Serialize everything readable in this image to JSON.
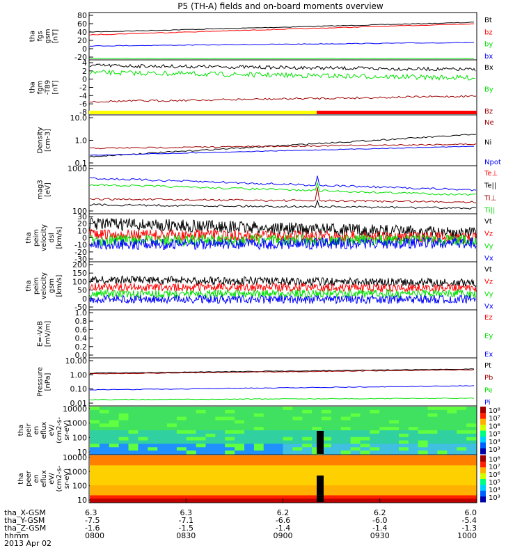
{
  "title": "P5 (TH-A) fields and on-board moments overview",
  "colors": {
    "black": "#000000",
    "red": "#ff0000",
    "green": "#00e000",
    "blue": "#0000ff",
    "darkred": "#a00000",
    "yellow": "#ffff00"
  },
  "panels": [
    {
      "id": "fgs",
      "ylabel": [
        "tha",
        "fgs",
        "gsm",
        "[nT]"
      ],
      "ticks": [
        "80",
        "60",
        "40",
        "20",
        "0",
        "-20"
      ],
      "legend": [
        [
          "Bt",
          "black"
        ],
        [
          "bz",
          "red"
        ],
        [
          "by",
          "green"
        ],
        [
          "bx",
          "blue"
        ]
      ]
    },
    {
      "id": "fgm",
      "ylabel": [
        "tha",
        "fgm",
        "-T89",
        "[nT]"
      ],
      "ticks": [
        "4",
        "2",
        "0",
        "-2",
        "-4",
        "-6",
        "-8"
      ],
      "legend": [
        [
          "Bx",
          "black"
        ],
        [
          "By",
          "green"
        ],
        [
          "Bz",
          "darkred"
        ]
      ]
    },
    {
      "id": "density",
      "ylabel": [
        "Density",
        "[cm-3]"
      ],
      "ticks": [
        "10.0",
        "1.0",
        "0.1"
      ],
      "legend": [
        [
          "Ne",
          "darkred"
        ],
        [
          "Ni",
          "black"
        ],
        [
          "Npot",
          "blue"
        ]
      ]
    },
    {
      "id": "temp",
      "ylabel": [
        "mag3",
        "[eV]"
      ],
      "ticks": [
        "1000",
        "100"
      ],
      "legend": [
        [
          "Te⊥",
          "red"
        ],
        [
          "Te||",
          "black"
        ],
        [
          "Ti⊥",
          "darkred"
        ],
        [
          "Ti||",
          "green"
        ]
      ]
    },
    {
      "id": "veldsl",
      "ylabel": [
        "tha",
        "peim",
        "velocity",
        "dsl",
        "[km/s]"
      ],
      "ticks": [
        "30",
        "20",
        "10",
        "0",
        "-10",
        "-20",
        "-30"
      ],
      "legend": [
        [
          "Vt",
          "black"
        ],
        [
          "Vz",
          "red"
        ],
        [
          "Vy",
          "green"
        ],
        [
          "Vx",
          "blue"
        ]
      ]
    },
    {
      "id": "velgsm",
      "ylabel": [
        "tha",
        "peim",
        "velocity",
        "gsm",
        "[km/s]"
      ],
      "ticks": [
        "200",
        "150",
        "100",
        "50",
        "0",
        "-50"
      ],
      "legend": [
        [
          "Vt",
          "black"
        ],
        [
          "Vz",
          "red"
        ],
        [
          "Vy",
          "green"
        ],
        [
          "Vx",
          "blue"
        ]
      ]
    },
    {
      "id": "efield",
      "ylabel": [
        "E=-VxB",
        "[mV/m]"
      ],
      "ticks": [
        "1.0",
        "0.8",
        "0.6",
        "0.4",
        "0.2",
        "0.0"
      ],
      "legend": [
        [
          "Ez",
          "red"
        ],
        [
          "Ey",
          "green"
        ],
        [
          "Ex",
          "blue"
        ]
      ]
    },
    {
      "id": "pressure",
      "ylabel": [
        "Pressure",
        "[nPa]"
      ],
      "ticks": [
        "10.00",
        "1.00",
        "0.10",
        "0.01"
      ],
      "legend": [
        [
          "Pt",
          "black"
        ],
        [
          "Pb",
          "darkred"
        ],
        [
          "Pe",
          "green"
        ],
        [
          "Pi",
          "blue"
        ]
      ]
    },
    {
      "id": "peir",
      "ylabel": [
        "tha",
        "peir",
        "en",
        "eflux",
        "eV/",
        "(cm2-s-",
        "sr-eV)"
      ],
      "ticks": [
        "10000",
        "1000",
        "100",
        "10"
      ],
      "colorbar": [
        "10⁸",
        "10⁷",
        "10⁶",
        "10⁵",
        "10⁴",
        "10³"
      ]
    },
    {
      "id": "peer",
      "ylabel": [
        "tha",
        "peer",
        "en",
        "eflux",
        "eV/",
        "(cm2-s-",
        "sr-eV)"
      ],
      "ticks": [
        "10000",
        "1000",
        "100",
        "10"
      ],
      "colorbar": [
        "10⁸",
        "10⁷",
        "10⁶",
        "10⁵",
        "10⁴",
        "10³"
      ]
    }
  ],
  "xaxis": {
    "row_labels": [
      "tha_X-GSM",
      "tha_Y-GSM",
      "tha_Z-GSM",
      "hhmm",
      "2013 Apr 02"
    ],
    "columns": [
      [
        "6.3",
        "-7.5",
        "-1.6",
        "0800"
      ],
      [
        "6.3",
        "-7.1",
        "-1.5",
        "0830"
      ],
      [
        "6.2",
        "-6.6",
        "-1.4",
        "0900"
      ],
      [
        "6.2",
        "-6.0",
        "-1.4",
        "0930"
      ],
      [
        "6.0",
        "-5.4",
        "-1.3",
        "1000"
      ]
    ]
  },
  "chart_data": [
    {
      "type": "line",
      "name": "fgs",
      "x_range": [
        "0800",
        "1000"
      ],
      "ylim": [
        -20,
        80
      ],
      "series": [
        {
          "name": "Bt",
          "values": [
            42,
            48,
            54,
            60
          ]
        },
        {
          "name": "bz",
          "values": [
            40,
            46,
            52,
            58
          ]
        },
        {
          "name": "by",
          "values": [
            12,
            14,
            16,
            18
          ]
        },
        {
          "name": "bx",
          "values": [
            -20,
            -20,
            -20,
            -20
          ]
        }
      ]
    },
    {
      "type": "line",
      "name": "fgm-T89",
      "ylim": [
        -8,
        4
      ],
      "series": [
        {
          "name": "Bx",
          "values": [
            3,
            2,
            2.5,
            2
          ]
        },
        {
          "name": "By",
          "values": [
            1.5,
            0.5,
            0,
            0.5
          ]
        },
        {
          "name": "Bz",
          "values": [
            -5.5,
            -5,
            -4.5,
            -4.5
          ]
        }
      ]
    },
    {
      "type": "line",
      "name": "density",
      "ylim": [
        0.1,
        10
      ],
      "log": true,
      "series": [
        {
          "name": "Ne",
          "values": [
            0.5,
            0.55,
            0.5,
            0.6
          ]
        },
        {
          "name": "Ni",
          "values": [
            0.3,
            0.45,
            0.8,
            1.5
          ]
        },
        {
          "name": "Npot",
          "values": [
            0.3,
            0.4,
            0.5,
            0.6
          ]
        }
      ]
    },
    {
      "type": "line",
      "name": "temperature",
      "ylim": [
        100,
        10000
      ],
      "log": true,
      "series": [
        {
          "name": "Te⊥",
          "values": [
            600,
            400,
            300,
            300
          ]
        },
        {
          "name": "Te||",
          "values": [
            250,
            200,
            160,
            150
          ]
        },
        {
          "name": "Ti⊥",
          "values": [
            3000,
            2500,
            2000,
            1500
          ]
        },
        {
          "name": "Ti||",
          "values": [
            2000,
            1800,
            1500,
            1000
          ]
        }
      ]
    },
    {
      "type": "line",
      "name": "velocity dsl",
      "ylim": [
        -30,
        30
      ],
      "series": [
        {
          "name": "Vt",
          "values": [
            20,
            15,
            12,
            8
          ]
        },
        {
          "name": "Vz",
          "values": [
            5,
            5,
            3,
            3
          ]
        },
        {
          "name": "Vy",
          "values": [
            -5,
            -5,
            -3,
            -3
          ]
        },
        {
          "name": "Vx",
          "values": [
            -15,
            -10,
            -5,
            -5
          ]
        }
      ]
    },
    {
      "type": "line",
      "name": "velocity gsm",
      "ylim": [
        -50,
        200
      ],
      "series": [
        {
          "name": "Vt",
          "values": [
            80,
            75,
            70,
            70
          ]
        },
        {
          "name": "Vz",
          "values": [
            40,
            40,
            40,
            40
          ]
        },
        {
          "name": "Vy",
          "values": [
            -20,
            -20,
            -20,
            -20
          ]
        },
        {
          "name": "Vx",
          "values": [
            -30,
            -30,
            -30,
            -30
          ]
        }
      ]
    },
    {
      "type": "line",
      "name": "E=-VxB",
      "ylim": [
        0,
        1
      ],
      "series": []
    },
    {
      "type": "line",
      "name": "pressure",
      "ylim": [
        0.01,
        10
      ],
      "log": true,
      "series": [
        {
          "name": "Pt",
          "values": [
            1.0,
            1.2,
            1.6,
            2.0
          ]
        },
        {
          "name": "Pb",
          "values": [
            0.95,
            1.15,
            1.5,
            1.9
          ]
        },
        {
          "name": "Pe",
          "values": [
            0.03,
            0.03,
            0.04,
            0.05
          ]
        },
        {
          "name": "Pi",
          "values": [
            0.07,
            0.08,
            0.09,
            0.12
          ]
        }
      ]
    },
    {
      "type": "heatmap",
      "name": "peir",
      "ylim": [
        5,
        20000
      ]
    },
    {
      "type": "heatmap",
      "name": "peer",
      "ylim": [
        5,
        20000
      ]
    }
  ]
}
